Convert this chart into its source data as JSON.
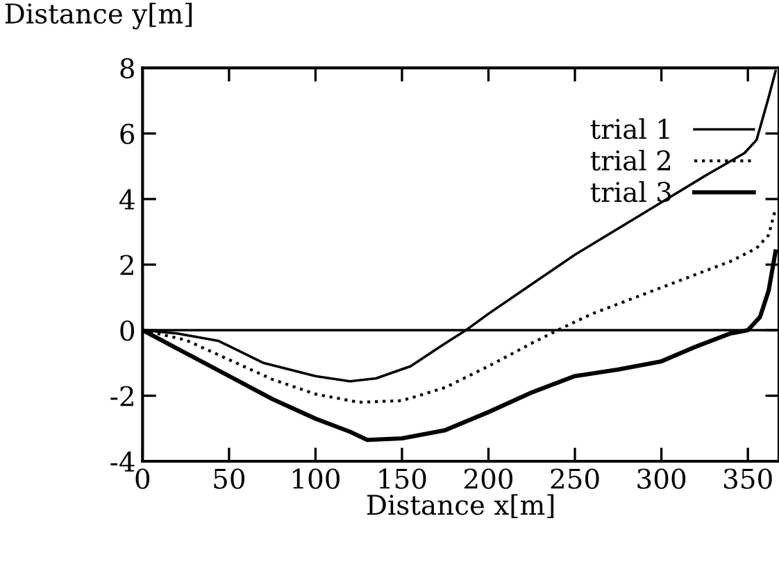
{
  "chart_data": {
    "type": "line",
    "xlabel": "Distance x[m]",
    "ylabel": "Distance y[m]",
    "xlim": [
      0,
      368
    ],
    "ylim": [
      -4,
      8
    ],
    "xticks": [
      0,
      50,
      100,
      150,
      200,
      250,
      300,
      350
    ],
    "yticks": [
      -4,
      -2,
      0,
      2,
      4,
      6,
      8
    ],
    "grid": false,
    "legend": "top right",
    "marker": "none",
    "ref_lines": [
      {
        "axis": "y",
        "value": 0,
        "color": "#000000",
        "line_style": "solid"
      }
    ],
    "series": [
      {
        "name": "trial 1",
        "color": "#000000",
        "line_style": "solid",
        "x": [
          0,
          20,
          44,
          70,
          100,
          120,
          135,
          155,
          175,
          187,
          200,
          225,
          250,
          275,
          300,
          325,
          348,
          355,
          362,
          366
        ],
        "values": [
          0,
          -0.1,
          -0.33,
          -1.0,
          -1.4,
          -1.56,
          -1.47,
          -1.1,
          -0.4,
          0,
          0.5,
          1.4,
          2.3,
          3.1,
          3.9,
          4.7,
          5.4,
          5.8,
          7.1,
          7.9
        ]
      },
      {
        "name": "trial 2",
        "color": "#000000",
        "line_style": "dotted",
        "x": [
          0,
          25,
          50,
          75,
          100,
          125,
          150,
          175,
          200,
          225,
          240,
          260,
          280,
          300,
          320,
          340,
          355,
          362,
          366
        ],
        "values": [
          0,
          -0.3,
          -0.9,
          -1.5,
          -1.95,
          -2.2,
          -2.15,
          -1.75,
          -1.1,
          -0.4,
          0,
          0.5,
          0.9,
          1.3,
          1.7,
          2.1,
          2.5,
          2.9,
          3.7
        ]
      },
      {
        "name": "trial 3",
        "color": "#000000",
        "line_style": "solid",
        "x": [
          0,
          25,
          50,
          75,
          100,
          120,
          130,
          150,
          175,
          200,
          225,
          250,
          275,
          300,
          320,
          340,
          350,
          357,
          362,
          366
        ],
        "values": [
          0,
          -0.7,
          -1.4,
          -2.1,
          -2.7,
          -3.1,
          -3.35,
          -3.3,
          -3.05,
          -2.5,
          -1.9,
          -1.4,
          -1.2,
          -0.95,
          -0.5,
          -0.1,
          0,
          0.4,
          1.2,
          2.4
        ]
      }
    ]
  }
}
